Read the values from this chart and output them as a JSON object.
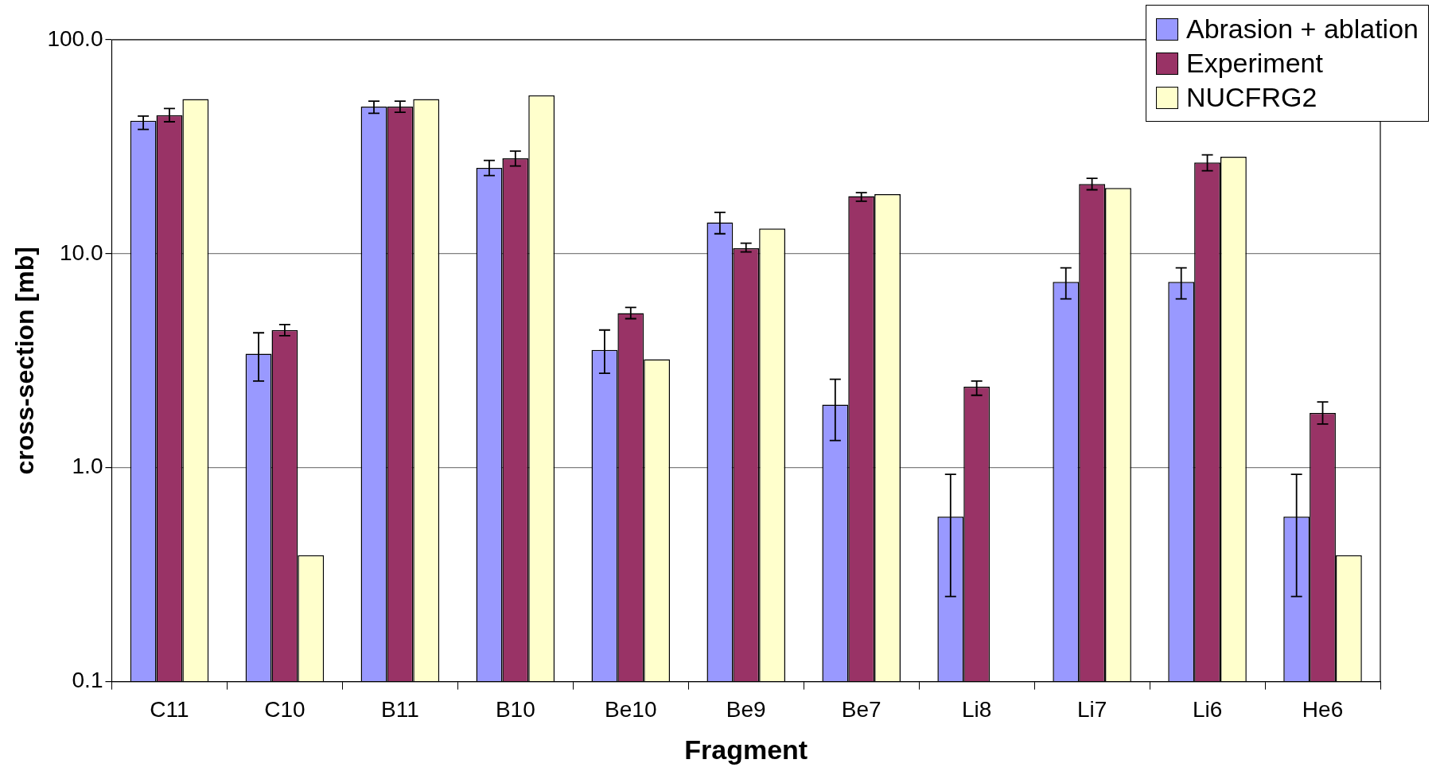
{
  "chart_data": {
    "type": "bar",
    "xlabel": "Fragment",
    "ylabel": "cross-section [mb]",
    "log": "y",
    "grid": "y",
    "legend": "top right",
    "categories": [
      "C11",
      "C10",
      "B11",
      "B10",
      "Be10",
      "Be9",
      "Be7",
      "Li8",
      "Li7",
      "Li6",
      "He6"
    ],
    "ylim": [
      0.1,
      100
    ],
    "yticks": [
      {
        "value": 0.1,
        "label": "0.1"
      },
      {
        "value": 1,
        "label": "1.0"
      },
      {
        "value": 10,
        "label": "10.0"
      },
      {
        "value": 100,
        "label": "100.0"
      }
    ],
    "series": [
      {
        "name": "Abrasion + ablation",
        "color": "#9999ff",
        "values": [
          41.8,
          3.41,
          48.7,
          25.2,
          3.55,
          14.0,
          1.97,
          0.59,
          7.38,
          7.38,
          0.59
        ],
        "errors": [
          [
            38.1,
            44.0
          ],
          [
            2.54,
            4.27
          ],
          [
            45.3,
            51.7
          ],
          [
            23.2,
            27.3
          ],
          [
            2.76,
            4.4
          ],
          [
            12.4,
            15.6
          ],
          [
            1.34,
            2.59
          ],
          [
            0.25,
            0.93
          ],
          [
            6.15,
            8.59
          ],
          [
            6.15,
            8.59
          ],
          [
            0.25,
            0.93
          ]
        ]
      },
      {
        "name": "Experiment",
        "color": "#993366",
        "values": [
          44.4,
          4.4,
          48.7,
          27.9,
          5.28,
          10.6,
          18.6,
          2.39,
          21.2,
          26.7,
          1.8
        ],
        "errors": [
          [
            41.4,
            47.7
          ],
          [
            4.14,
            4.67
          ],
          [
            45.8,
            51.7
          ],
          [
            25.7,
            30.2
          ],
          [
            4.97,
            5.61
          ],
          [
            10.2,
            11.2
          ],
          [
            17.6,
            19.3
          ],
          [
            2.18,
            2.54
          ],
          [
            19.9,
            22.5
          ],
          [
            24.4,
            29.0
          ],
          [
            1.6,
            2.03
          ]
        ]
      },
      {
        "name": "NUCFRG2",
        "color": "#ffffcc",
        "values": [
          52.8,
          0.39,
          52.8,
          55,
          3.21,
          13.1,
          19.0,
          null,
          20.3,
          28.4,
          0.39
        ]
      }
    ]
  }
}
